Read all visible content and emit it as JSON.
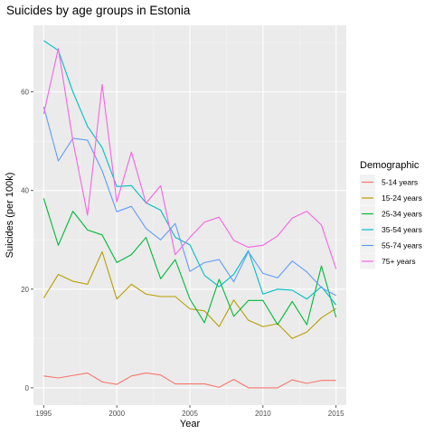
{
  "chart_data": {
    "type": "line",
    "title": "Suicides by age groups in Estonia",
    "xlabel": "Year",
    "ylabel": "Suicides (per 100k)",
    "xlim": [
      1994.3,
      2015.7
    ],
    "ylim": [
      -3.5,
      73.5
    ],
    "x_ticks": [
      1995,
      2000,
      2005,
      2010,
      2015
    ],
    "y_ticks": [
      0,
      20,
      40,
      60
    ],
    "grid": true,
    "legend_title": "Demographic",
    "legend_position": "right",
    "x": [
      1995,
      1996,
      1997,
      1998,
      1999,
      2000,
      2001,
      2002,
      2003,
      2004,
      2005,
      2006,
      2007,
      2008,
      2009,
      2010,
      2011,
      2012,
      2013,
      2014,
      2015
    ],
    "series": [
      {
        "name": "5-14 years",
        "color": "#F8766D",
        "values": [
          2.4,
          2.0,
          2.5,
          3.0,
          1.2,
          0.7,
          2.4,
          3.0,
          2.6,
          0.8,
          0.8,
          0.8,
          0.1,
          1.7,
          0.0,
          0.0,
          0.0,
          1.6,
          0.9,
          1.5,
          1.5
        ]
      },
      {
        "name": "15-24 years",
        "color": "#B79F00",
        "values": [
          18.2,
          23.0,
          21.6,
          21.0,
          27.6,
          18.0,
          21.0,
          19.0,
          18.5,
          18.5,
          16.0,
          15.6,
          12.4,
          17.8,
          13.7,
          12.4,
          13.0,
          10.0,
          11.3,
          14.2,
          16.1
        ]
      },
      {
        "name": "25-34 years",
        "color": "#00BA38",
        "values": [
          38.4,
          28.9,
          35.8,
          32.0,
          31.0,
          25.4,
          27.0,
          30.5,
          22.1,
          26.0,
          18.0,
          13.2,
          22.0,
          14.5,
          17.7,
          17.7,
          12.8,
          17.5,
          12.8,
          24.7,
          14.3
        ]
      },
      {
        "name": "35-54 years",
        "color": "#00BFC4",
        "values": [
          70.4,
          68.4,
          60.0,
          53.0,
          48.7,
          40.8,
          41.0,
          37.5,
          36.0,
          30.5,
          29.0,
          22.8,
          20.5,
          23.0,
          27.8,
          19.0,
          20.0,
          19.8,
          18.0,
          20.5,
          16.8
        ]
      },
      {
        "name": "55-74 years",
        "color": "#619CFF",
        "values": [
          57.0,
          46.0,
          50.6,
          50.2,
          44.0,
          35.7,
          36.8,
          32.3,
          30.0,
          33.3,
          23.6,
          25.4,
          26.0,
          21.5,
          27.6,
          23.2,
          22.3,
          25.7,
          23.5,
          20.3,
          18.7
        ]
      },
      {
        "name": "75+ years",
        "color": "#F564E3",
        "values": [
          55.5,
          68.8,
          50.0,
          35.0,
          61.5,
          37.7,
          47.8,
          37.4,
          41.0,
          27.0,
          30.5,
          33.6,
          34.6,
          29.9,
          28.5,
          28.9,
          30.8,
          34.4,
          35.8,
          33.0,
          24.1
        ]
      }
    ]
  }
}
